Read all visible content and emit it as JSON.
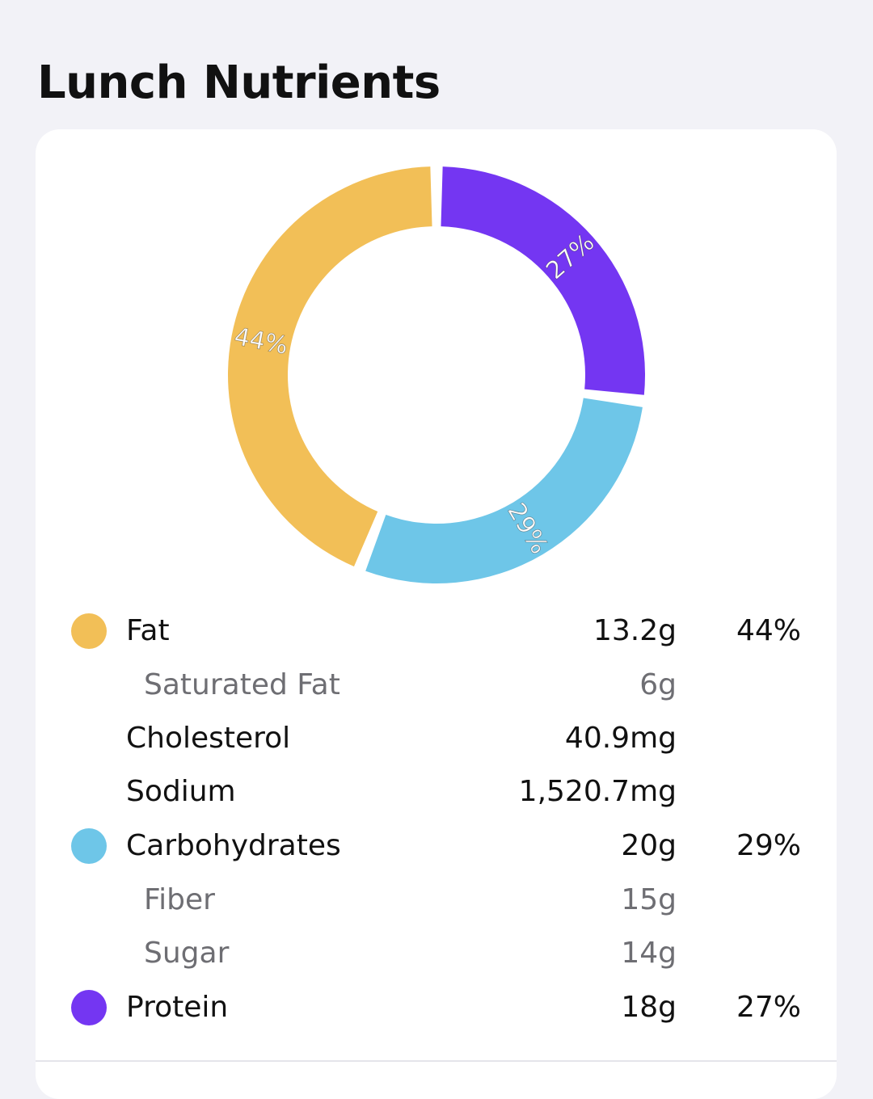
{
  "page": {
    "title": "Lunch Nutrients"
  },
  "colors": {
    "background": "#f2f2f7",
    "card": "#ffffff",
    "fat": "#f2bf57",
    "carbohydrates": "#6ec6e8",
    "protein": "#7436f2",
    "text_primary": "#111111",
    "text_secondary": "#6e6e73"
  },
  "chart_data": {
    "type": "pie",
    "categories": [
      "Protein",
      "Carbohydrates",
      "Fat"
    ],
    "values": [
      27,
      29,
      44
    ],
    "labels": [
      "27%",
      "29%",
      "44%"
    ],
    "colors": [
      "#7436f2",
      "#6ec6e8",
      "#f2bf57"
    ]
  },
  "nutrients": [
    {
      "label": "Fat",
      "amount": "13.2g",
      "percent": "44%",
      "color": "#f2bf57",
      "level": "main"
    },
    {
      "label": "Saturated Fat",
      "amount": "6g",
      "percent": "",
      "level": "sub"
    },
    {
      "label": "Cholesterol",
      "amount": "40.9mg",
      "percent": "",
      "level": "main"
    },
    {
      "label": "Sodium",
      "amount": "1,520.7mg",
      "percent": "",
      "level": "main"
    },
    {
      "label": "Carbohydrates",
      "amount": "20g",
      "percent": "29%",
      "color": "#6ec6e8",
      "level": "main"
    },
    {
      "label": "Fiber",
      "amount": "15g",
      "percent": "",
      "level": "sub"
    },
    {
      "label": "Sugar",
      "amount": "14g",
      "percent": "",
      "level": "sub"
    },
    {
      "label": "Protein",
      "amount": "18g",
      "percent": "27%",
      "color": "#7436f2",
      "level": "main"
    }
  ]
}
